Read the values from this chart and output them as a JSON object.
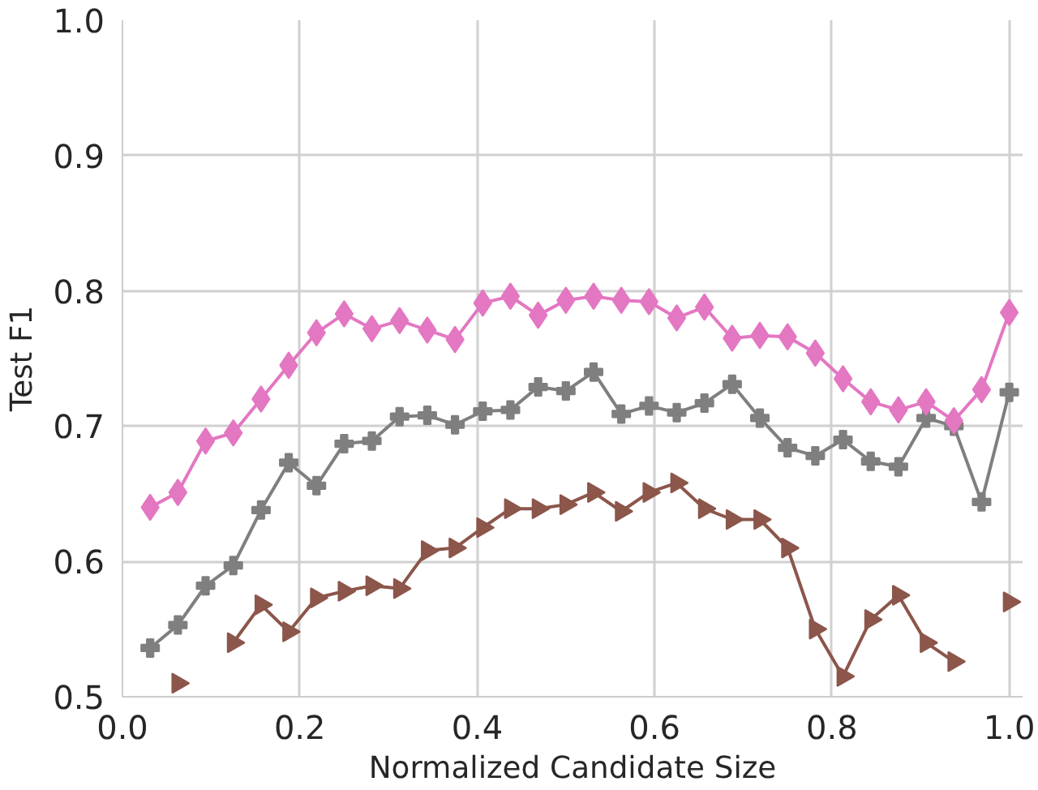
{
  "chart_data": {
    "type": "line",
    "xlabel": "Normalized Candidate Size",
    "ylabel": "Test F1",
    "x": [
      0.03125,
      0.0625,
      0.09375,
      0.125,
      0.15625,
      0.1875,
      0.21875,
      0.25,
      0.28125,
      0.3125,
      0.34375,
      0.375,
      0.40625,
      0.4375,
      0.46875,
      0.5,
      0.53125,
      0.5625,
      0.59375,
      0.625,
      0.65625,
      0.6875,
      0.71875,
      0.75,
      0.78125,
      0.8125,
      0.84375,
      0.875,
      0.90625,
      0.9375,
      0.96875,
      1.0
    ],
    "series": [
      {
        "color": "#8c564b",
        "marker": "triangle",
        "values": [
          null,
          0.51,
          null,
          0.54,
          0.568,
          0.548,
          0.573,
          0.578,
          0.582,
          0.58,
          0.608,
          0.61,
          0.625,
          0.639,
          0.639,
          0.642,
          0.651,
          0.637,
          0.651,
          0.658,
          0.639,
          0.631,
          0.631,
          0.61,
          0.55,
          0.515,
          0.557,
          0.575,
          0.54,
          0.526,
          null,
          0.57
        ]
      },
      {
        "color": "#e377c2",
        "marker": "diamond",
        "values": [
          0.64,
          0.651,
          0.689,
          0.695,
          0.72,
          0.745,
          0.769,
          0.783,
          0.772,
          0.778,
          0.771,
          0.764,
          0.791,
          0.796,
          0.782,
          0.793,
          0.796,
          0.793,
          0.792,
          0.78,
          0.788,
          0.765,
          0.767,
          0.766,
          0.754,
          0.735,
          0.718,
          0.712,
          0.718,
          0.704,
          0.727,
          0.784
        ]
      },
      {
        "color": "#7f7f7f",
        "marker": "cross",
        "values": [
          0.536,
          0.553,
          0.582,
          0.597,
          0.638,
          0.673,
          0.656,
          0.687,
          0.689,
          0.707,
          0.708,
          0.701,
          0.711,
          0.712,
          0.729,
          0.726,
          0.74,
          0.709,
          0.715,
          0.71,
          0.717,
          0.731,
          0.706,
          0.684,
          0.678,
          0.69,
          0.674,
          0.67,
          0.706,
          0.7,
          0.644,
          0.725
        ]
      }
    ],
    "xlim": [
      0,
      1.015
    ],
    "ylim": [
      0.5,
      1.0
    ],
    "xticks": [
      {
        "value": 0,
        "label": "0.0"
      },
      0.2,
      0.4,
      0.6,
      0.8,
      {
        "value": 1,
        "label": "1.0"
      }
    ],
    "yticks": [
      0.5,
      0.6,
      0.7,
      0.8,
      0.9,
      {
        "value": 1,
        "label": "1.0"
      }
    ],
    "grid": true,
    "line_style": "solid"
  }
}
